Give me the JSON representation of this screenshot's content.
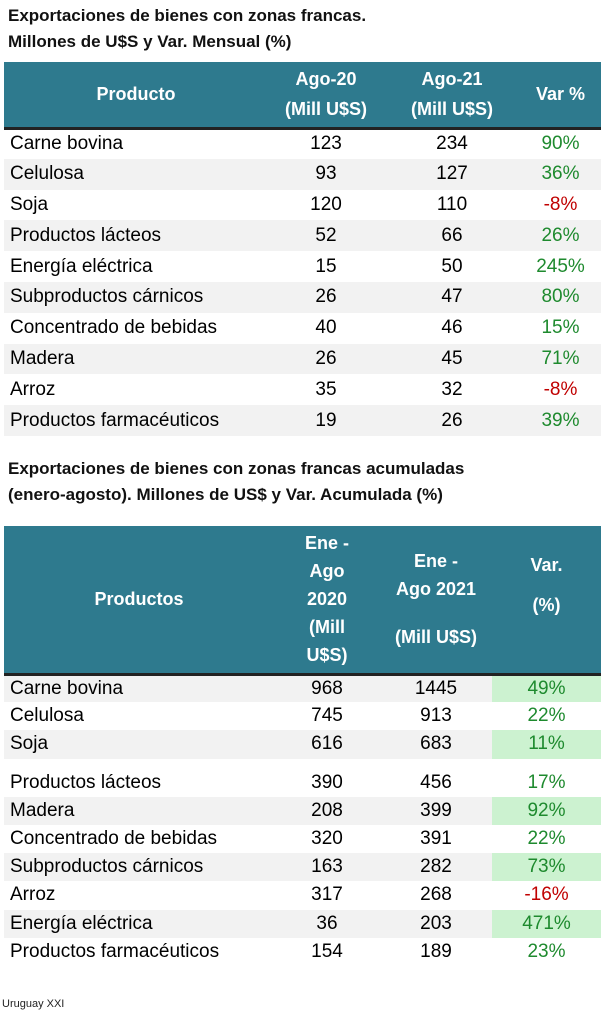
{
  "table1": {
    "title_line1": "Exportaciones de bienes con zonas francas.",
    "title_line2": "Millones de U$S y Var. Mensual (%)",
    "headers": {
      "product": "Producto",
      "col2_line1": "Ago-20",
      "col2_line2": "(Mill U$S)",
      "col3_line1": "Ago-21",
      "col3_line2": "(Mill U$S)",
      "var": "Var %"
    },
    "rows": [
      {
        "product": "Carne bovina",
        "ago20": "123",
        "ago21": "234",
        "var": "90%"
      },
      {
        "product": "Celulosa",
        "ago20": "93",
        "ago21": "127",
        "var": "36%"
      },
      {
        "product": "Soja",
        "ago20": "120",
        "ago21": "110",
        "var": "-8%"
      },
      {
        "product": "Productos lácteos",
        "ago20": "52",
        "ago21": "66",
        "var": "26%"
      },
      {
        "product": "Energía eléctrica",
        "ago20": "15",
        "ago21": "50",
        "var": "245%"
      },
      {
        "product": "Subproductos cárnicos",
        "ago20": "26",
        "ago21": "47",
        "var": "80%"
      },
      {
        "product": "Concentrado de bebidas",
        "ago20": "40",
        "ago21": "46",
        "var": "15%"
      },
      {
        "product": "Madera",
        "ago20": "26",
        "ago21": "45",
        "var": "71%"
      },
      {
        "product": "Arroz",
        "ago20": "35",
        "ago21": "32",
        "var": "-8%"
      },
      {
        "product": "Productos farmacéuticos",
        "ago20": "19",
        "ago21": "26",
        "var": "39%"
      }
    ]
  },
  "table2": {
    "title_line1": "Exportaciones de bienes con zonas francas acumuladas",
    "title_line2": "(enero-agosto).  Millones de US$ y  Var. Acumulada (%)",
    "headers": {
      "product": "Productos",
      "col2_line1": "Ene -",
      "col2_line2": "Ago",
      "col2_line3": "2020",
      "col2_line4": "(Mill",
      "col2_line5": "U$S)",
      "col3_line1": "Ene -",
      "col3_line2": "Ago 2021",
      "col3_line3": "(Mill U$S)",
      "var_line1": "Var.",
      "var_line2": "(%)"
    },
    "rows": [
      {
        "product": "Carne bovina",
        "y2020": "968",
        "y2021": "1445",
        "var": "49%"
      },
      {
        "product": "Celulosa",
        "y2020": "745",
        "y2021": "913",
        "var": "22%"
      },
      {
        "product": "Soja",
        "y2020": "616",
        "y2021": "683",
        "var": "11%"
      },
      {
        "product": "Productos lácteos",
        "y2020": "390",
        "y2021": "456",
        "var": "17%"
      },
      {
        "product": "Madera",
        "y2020": "208",
        "y2021": "399",
        "var": "92%"
      },
      {
        "product": "Concentrado de bebidas",
        "y2020": "320",
        "y2021": "391",
        "var": "22%"
      },
      {
        "product": "Subproductos cárnicos",
        "y2020": "163",
        "y2021": "282",
        "var": "73%"
      },
      {
        "product": "Arroz",
        "y2020": "317",
        "y2021": "268",
        "var": "-16%"
      },
      {
        "product": "Energía eléctrica",
        "y2020": "36",
        "y2021": "203",
        "var": "471%"
      },
      {
        "product": "Productos farmacéuticos",
        "y2020": "154",
        "y2021": "189",
        "var": "23%"
      }
    ]
  },
  "colors": {
    "header_bg": "#2e7a8e",
    "positive": "#1e8a2e",
    "negative": "#c00000",
    "highlight": "#ccf2d0",
    "shade": "#f2f2f2"
  },
  "source": "Uruguay XXI"
}
